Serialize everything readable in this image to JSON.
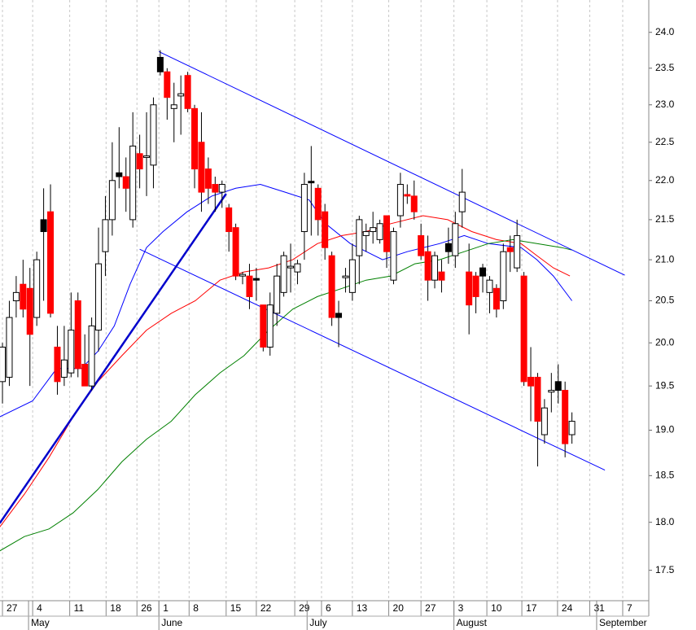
{
  "chart_data": {
    "type": "candlestick",
    "log_y": true,
    "ylim": [
      17.19,
      24.46
    ],
    "yticks": [
      {
        "value": 17.5,
        "label": "17.5"
      },
      {
        "value": 18.0,
        "label": "18.0"
      },
      18.5,
      {
        "value": 19.0,
        "label": "19.0"
      },
      19.5,
      {
        "value": 20.0,
        "label": "20.0"
      },
      20.5,
      {
        "value": 21.0,
        "label": "21.0"
      },
      21.5,
      {
        "value": 22.0,
        "label": "22.0"
      },
      22.5,
      {
        "value": 23.0,
        "label": "23.0"
      },
      23.5,
      {
        "value": 24.0,
        "label": "24.0"
      }
    ],
    "xlim": [
      -0.36,
      94.2
    ],
    "xticks": [
      {
        "value": 0,
        "label": "27"
      },
      {
        "value": 4.4,
        "label": "4"
      },
      {
        "value": 9.8,
        "label": "11"
      },
      {
        "value": 15.1,
        "label": "18"
      },
      {
        "value": 19.6,
        "label": "26"
      },
      {
        "value": 22.8,
        "label": "1"
      },
      {
        "value": 27.2,
        "label": "8"
      },
      {
        "value": 32.6,
        "label": "15"
      },
      {
        "value": 37.0,
        "label": "22"
      },
      {
        "value": 42.6,
        "label": "29"
      },
      {
        "value": 46.5,
        "label": "6"
      },
      {
        "value": 51.0,
        "label": "13"
      },
      {
        "value": 56.3,
        "label": "20"
      },
      {
        "value": 61.0,
        "label": "27"
      },
      {
        "value": 65.8,
        "label": "3"
      },
      {
        "value": 70.6,
        "label": "10"
      },
      {
        "value": 75.7,
        "label": "17"
      },
      {
        "value": 80.9,
        "label": "24"
      },
      {
        "value": 85.6,
        "label": "31"
      },
      {
        "value": 90.4,
        "label": "7"
      }
    ],
    "month_ticks": [
      {
        "value": 3.8,
        "label": "May"
      },
      {
        "value": 22.8,
        "label": "June"
      },
      {
        "value": 44.4,
        "label": "July"
      },
      {
        "value": 65.8,
        "label": "August"
      },
      {
        "value": 86.6,
        "label": "September"
      }
    ],
    "grid": true,
    "candles": [
      {
        "open": 19.55,
        "high": 20.0,
        "low": 19.3,
        "close": 19.95,
        "color": "#ffffff"
      },
      {
        "open": 19.6,
        "high": 20.5,
        "low": 19.5,
        "close": 20.3,
        "color": "#ffffff"
      },
      {
        "open": 20.5,
        "high": 20.8,
        "low": 20.3,
        "close": 20.6,
        "color": "#ffffff"
      },
      {
        "open": 20.7,
        "high": 21.0,
        "low": 20.3,
        "close": 20.4,
        "color": "#ff0000"
      },
      {
        "open": 20.65,
        "high": 20.9,
        "low": 19.5,
        "close": 20.1,
        "color": "#ff0000"
      },
      {
        "open": 20.3,
        "high": 21.1,
        "low": 20.2,
        "close": 21.0,
        "color": "#ffffff"
      },
      {
        "open": 21.5,
        "high": 21.9,
        "low": 20.5,
        "close": 21.35,
        "color": "#000000"
      },
      {
        "open": 21.6,
        "high": 21.95,
        "low": 20.3,
        "close": 20.35,
        "color": "#ff0000"
      },
      {
        "open": 19.95,
        "high": 20.2,
        "low": 19.4,
        "close": 19.55,
        "color": "#ff0000"
      },
      {
        "open": 19.6,
        "high": 20.2,
        "low": 19.5,
        "close": 19.8,
        "color": "#ffffff"
      },
      {
        "open": 19.65,
        "high": 20.6,
        "low": 19.6,
        "close": 20.15,
        "color": "#ffffff"
      },
      {
        "open": 20.5,
        "high": 20.6,
        "low": 19.6,
        "close": 19.7,
        "color": "#ff0000"
      },
      {
        "open": 19.75,
        "high": 20.1,
        "low": 19.5,
        "close": 19.5,
        "color": "#ff0000"
      },
      {
        "open": 19.5,
        "high": 20.3,
        "low": 19.45,
        "close": 20.2,
        "color": "#ffffff"
      },
      {
        "open": 20.15,
        "high": 21.4,
        "low": 19.9,
        "close": 20.95,
        "color": "#ffffff"
      },
      {
        "open": 21.1,
        "high": 21.8,
        "low": 20.8,
        "close": 21.5,
        "color": "#ffffff"
      },
      {
        "open": 21.5,
        "high": 22.5,
        "low": 21.3,
        "close": 22.0,
        "color": "#ffffff"
      },
      {
        "open": 22.1,
        "high": 22.7,
        "low": 21.9,
        "close": 22.05,
        "color": "#000000"
      },
      {
        "open": 22.05,
        "high": 22.3,
        "low": 21.6,
        "close": 21.9,
        "color": "#ff0000"
      },
      {
        "open": 21.5,
        "high": 22.9,
        "low": 21.4,
        "close": 22.45,
        "color": "#ffffff"
      },
      {
        "open": 22.35,
        "high": 22.6,
        "low": 21.9,
        "close": 22.15,
        "color": "#ff0000"
      },
      {
        "open": 22.3,
        "high": 22.9,
        "low": 21.8,
        "close": 22.32,
        "color": "#ffffff"
      },
      {
        "open": 22.2,
        "high": 23.1,
        "low": 21.9,
        "close": 23.0,
        "color": "#ffffff"
      },
      {
        "open": 23.65,
        "high": 23.75,
        "low": 23.4,
        "close": 23.45,
        "color": "#000000"
      },
      {
        "open": 23.45,
        "high": 23.5,
        "low": 22.8,
        "close": 23.1,
        "color": "#ff0000"
      },
      {
        "open": 22.95,
        "high": 23.3,
        "low": 22.5,
        "close": 23.0,
        "color": "#ffffff"
      },
      {
        "open": 23.12,
        "high": 23.4,
        "low": 22.6,
        "close": 23.15,
        "color": "#ffffff"
      },
      {
        "open": 23.4,
        "high": 23.45,
        "low": 22.9,
        "close": 22.95,
        "color": "#ff0000"
      },
      {
        "open": 22.95,
        "high": 23.0,
        "low": 21.9,
        "close": 22.15,
        "color": "#ff0000"
      },
      {
        "open": 22.5,
        "high": 22.9,
        "low": 21.6,
        "close": 21.85,
        "color": "#ff0000"
      },
      {
        "open": 22.15,
        "high": 22.3,
        "low": 21.7,
        "close": 21.9,
        "color": "#ff0000"
      },
      {
        "open": 21.95,
        "high": 22.05,
        "low": 21.6,
        "close": 21.85,
        "color": "#ff0000"
      },
      {
        "open": 21.85,
        "high": 22.0,
        "low": 21.65,
        "close": 21.95,
        "color": "#ffffff"
      },
      {
        "open": 21.65,
        "high": 21.7,
        "low": 21.1,
        "close": 21.35,
        "color": "#ff0000"
      },
      {
        "open": 21.4,
        "high": 21.45,
        "low": 20.75,
        "close": 20.8,
        "color": "#ff0000"
      },
      {
        "open": 20.8,
        "high": 20.85,
        "low": 20.7,
        "close": 20.82,
        "color": "#ffffff"
      },
      {
        "open": 20.8,
        "high": 20.95,
        "low": 20.4,
        "close": 20.55,
        "color": "#ff0000"
      },
      {
        "open": 20.77,
        "high": 20.9,
        "low": 20.5,
        "close": 20.75,
        "color": "#000000"
      },
      {
        "open": 20.45,
        "high": 20.45,
        "low": 19.9,
        "close": 19.95,
        "color": "#ff0000"
      },
      {
        "open": 19.95,
        "high": 20.6,
        "low": 19.85,
        "close": 20.45,
        "color": "#ffffff"
      },
      {
        "open": 20.35,
        "high": 20.95,
        "low": 20.2,
        "close": 20.8,
        "color": "#ffffff"
      },
      {
        "open": 20.6,
        "high": 21.1,
        "low": 20.55,
        "close": 21.05,
        "color": "#ffffff"
      },
      {
        "open": 20.9,
        "high": 21.2,
        "low": 20.6,
        "close": 20.92,
        "color": "#ffffff"
      },
      {
        "open": 20.85,
        "high": 21.0,
        "low": 20.7,
        "close": 20.95,
        "color": "#ffffff"
      },
      {
        "open": 21.35,
        "high": 22.1,
        "low": 21.0,
        "close": 21.95,
        "color": "#ffffff"
      },
      {
        "open": 21.99,
        "high": 22.45,
        "low": 21.3,
        "close": 21.97,
        "color": "#000000"
      },
      {
        "open": 21.9,
        "high": 21.95,
        "low": 21.3,
        "close": 21.5,
        "color": "#ff0000"
      },
      {
        "open": 21.6,
        "high": 21.7,
        "low": 21.0,
        "close": 21.15,
        "color": "#ff0000"
      },
      {
        "open": 21.05,
        "high": 21.1,
        "low": 20.2,
        "close": 20.3,
        "color": "#ff0000"
      },
      {
        "open": 20.35,
        "high": 20.5,
        "low": 19.95,
        "close": 20.3,
        "color": "#000000"
      },
      {
        "open": 20.78,
        "high": 20.9,
        "low": 20.6,
        "close": 20.8,
        "color": "#ffffff"
      },
      {
        "open": 20.6,
        "high": 21.2,
        "low": 20.5,
        "close": 21.0,
        "color": "#ffffff"
      },
      {
        "open": 21.05,
        "high": 21.55,
        "low": 20.7,
        "close": 21.5,
        "color": "#ffffff"
      },
      {
        "open": 21.3,
        "high": 21.45,
        "low": 21.1,
        "close": 21.35,
        "color": "#ffffff"
      },
      {
        "open": 21.35,
        "high": 21.6,
        "low": 21.2,
        "close": 21.4,
        "color": "#ffffff"
      },
      {
        "open": 21.25,
        "high": 21.5,
        "low": 21.2,
        "close": 21.45,
        "color": "#ffffff"
      },
      {
        "open": 21.55,
        "high": 21.55,
        "low": 20.9,
        "close": 21.1,
        "color": "#ff0000"
      },
      {
        "open": 20.75,
        "high": 21.4,
        "low": 20.7,
        "close": 21.35,
        "color": "#ffffff"
      },
      {
        "open": 21.55,
        "high": 22.1,
        "low": 21.4,
        "close": 21.95,
        "color": "#ffffff"
      },
      {
        "open": 21.82,
        "high": 21.95,
        "low": 21.7,
        "close": 21.8,
        "color": "#ff0000"
      },
      {
        "open": 21.8,
        "high": 22.0,
        "low": 21.5,
        "close": 21.6,
        "color": "#ff0000"
      },
      {
        "open": 21.3,
        "high": 21.45,
        "low": 21.0,
        "close": 21.05,
        "color": "#ff0000"
      },
      {
        "open": 21.1,
        "high": 21.3,
        "low": 20.5,
        "close": 20.75,
        "color": "#ff0000"
      },
      {
        "open": 20.75,
        "high": 21.1,
        "low": 20.65,
        "close": 21.05,
        "color": "#ffffff"
      },
      {
        "open": 20.85,
        "high": 21.0,
        "low": 20.6,
        "close": 20.75,
        "color": "#ff0000"
      },
      {
        "open": 21.2,
        "high": 21.4,
        "low": 20.95,
        "close": 21.1,
        "color": "#000000"
      },
      {
        "open": 21.05,
        "high": 21.6,
        "low": 20.9,
        "close": 21.45,
        "color": "#ffffff"
      },
      {
        "open": 21.6,
        "high": 22.15,
        "low": 21.4,
        "close": 21.85,
        "color": "#ffffff"
      },
      {
        "open": 20.85,
        "high": 21.2,
        "low": 20.1,
        "close": 20.45,
        "color": "#ff0000"
      },
      {
        "open": 20.8,
        "high": 20.85,
        "low": 20.35,
        "close": 20.55,
        "color": "#ff0000"
      },
      {
        "open": 20.9,
        "high": 20.95,
        "low": 20.6,
        "close": 20.8,
        "color": "#000000"
      },
      {
        "open": 20.6,
        "high": 20.8,
        "low": 20.35,
        "close": 20.75,
        "color": "#ffffff"
      },
      {
        "open": 20.65,
        "high": 20.7,
        "low": 20.3,
        "close": 20.4,
        "color": "#ff0000"
      },
      {
        "open": 20.5,
        "high": 21.2,
        "low": 20.4,
        "close": 21.1,
        "color": "#ffffff"
      },
      {
        "open": 21.15,
        "high": 21.3,
        "low": 20.85,
        "close": 21.1,
        "color": "#ff0000"
      },
      {
        "open": 20.9,
        "high": 21.5,
        "low": 20.85,
        "close": 21.3,
        "color": "#ffffff"
      },
      {
        "open": 20.8,
        "high": 20.85,
        "low": 19.5,
        "close": 19.55,
        "color": "#ff0000"
      },
      {
        "open": 19.6,
        "high": 19.95,
        "low": 19.1,
        "close": 19.5,
        "color": "#ff0000"
      },
      {
        "open": 19.6,
        "high": 19.65,
        "low": 18.6,
        "close": 19.1,
        "color": "#ff0000"
      },
      {
        "open": 18.95,
        "high": 19.35,
        "low": 18.85,
        "close": 19.25,
        "color": "#ffffff"
      },
      {
        "open": 19.43,
        "high": 19.65,
        "low": 19.2,
        "close": 19.45,
        "color": "#ffffff"
      },
      {
        "open": 19.55,
        "high": 19.75,
        "low": 19.3,
        "close": 19.45,
        "color": "#000000"
      },
      {
        "open": 19.45,
        "high": 19.55,
        "low": 18.7,
        "close": 18.85,
        "color": "#ff0000"
      },
      {
        "open": 18.95,
        "high": 19.2,
        "low": 18.85,
        "close": 19.1,
        "color": "#ffffff"
      }
    ],
    "moving_averages": [
      {
        "color": "#0000ff",
        "x": [
          -0.4,
          4.4,
          7.9,
          11.5,
          13.9,
          16.3,
          18.6,
          21.0,
          23.4,
          26.9,
          30.5,
          34.0,
          37.6,
          41.2,
          44.7,
          47.1,
          50.7,
          55.4,
          59.0,
          63.7,
          67.3,
          70.8,
          75.6,
          77.9,
          80.3,
          83.0
        ],
        "values": [
          19.15,
          19.33,
          19.7,
          19.7,
          19.9,
          20.2,
          20.7,
          21.15,
          21.35,
          21.6,
          21.8,
          21.9,
          21.95,
          21.85,
          21.75,
          21.45,
          21.2,
          21.0,
          21.1,
          21.2,
          21.3,
          21.2,
          21.15,
          21.0,
          20.8,
          20.5
        ]
      },
      {
        "color": "#ff0000",
        "x": [
          -0.4,
          3.2,
          6.8,
          10.3,
          13.9,
          17.4,
          21.0,
          24.6,
          28.1,
          31.7,
          35.2,
          38.8,
          42.3,
          45.9,
          49.5,
          53.0,
          56.6,
          61.3,
          64.9,
          68.4,
          72.0,
          75.6,
          77.9,
          80.3,
          82.7
        ],
        "values": [
          17.95,
          18.3,
          18.7,
          19.15,
          19.55,
          19.85,
          20.15,
          20.35,
          20.5,
          20.75,
          20.85,
          20.9,
          21.0,
          21.2,
          21.3,
          21.35,
          21.45,
          21.55,
          21.5,
          21.35,
          21.25,
          21.2,
          21.05,
          20.9,
          20.8
        ]
      },
      {
        "color": "#008000",
        "x": [
          -0.4,
          3.2,
          6.8,
          10.3,
          13.9,
          17.4,
          21.0,
          24.6,
          28.1,
          31.7,
          35.2,
          38.8,
          42.3,
          45.9,
          49.5,
          53.0,
          56.6,
          60.1,
          63.7,
          67.3,
          70.8,
          74.4,
          77.9,
          81.5,
          83.0
        ],
        "values": [
          17.7,
          17.85,
          17.93,
          18.1,
          18.35,
          18.65,
          18.9,
          19.1,
          19.4,
          19.65,
          19.85,
          20.15,
          20.4,
          20.55,
          20.65,
          20.75,
          20.8,
          20.95,
          21.0,
          21.1,
          21.2,
          21.25,
          21.2,
          21.15,
          21.12
        ]
      }
    ],
    "trendlines": [
      {
        "color": "#0000ff",
        "linewidth": 1,
        "x": [
          22.8,
          90.7
        ],
        "values": [
          23.73,
          20.81
        ]
      },
      {
        "color": "#0000ff",
        "linewidth": 1,
        "x": [
          20.0,
          87.8
        ],
        "values": [
          21.13,
          18.56
        ]
      },
      {
        "color": "#0000cc",
        "linewidth": 2.5,
        "x": [
          -0.4,
          32.6
        ],
        "values": [
          17.99,
          21.83
        ]
      }
    ]
  }
}
